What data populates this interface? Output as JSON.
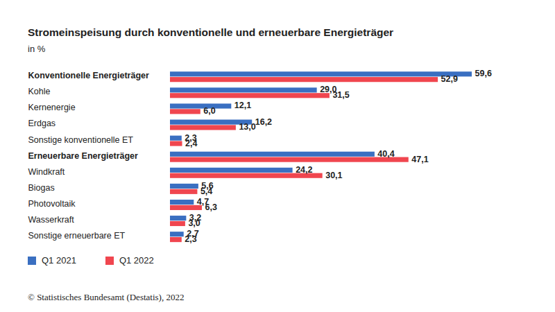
{
  "chart_data": {
    "type": "bar",
    "orientation": "horizontal",
    "title": "Stromeinspeisung durch konventionelle und erneuerbare Energieträger",
    "subtitle": "in %",
    "caption": "© Statistisches Bundesamt (Destatis), 2022",
    "categories": [
      "Konventionelle Energieträger",
      "Kohle",
      "Kernenergie",
      "Erdgas",
      "Sonstige konventionelle ET",
      "Erneuerbare Energieträger",
      "Windkraft",
      "Biogas",
      "Photovoltaik",
      "Wasserkraft",
      "Sonstige erneuerbare ET"
    ],
    "series": [
      {
        "name": "Q1 2021",
        "color": "#3a6fc1",
        "values": [
          59.6,
          29.0,
          12.1,
          16.2,
          2.3,
          40.4,
          24.2,
          5.6,
          4.7,
          3.2,
          2.7
        ],
        "value_labels": [
          "59,6",
          "29,0",
          "12,1",
          "16,2",
          "2,3",
          "40,4",
          "24,2",
          "5,6",
          "4,7",
          "3,2",
          "2,7"
        ]
      },
      {
        "name": "Q1 2022",
        "color": "#f0464f",
        "values": [
          52.9,
          31.5,
          6.0,
          13.0,
          2.4,
          47.1,
          30.1,
          5.4,
          6.3,
          3.0,
          2.3
        ],
        "value_labels": [
          "52,9",
          "31,5",
          "6,0",
          "13,0",
          "2,4",
          "47,1",
          "30,1",
          "5,4",
          "6,3",
          "3,0",
          "2,3"
        ]
      }
    ],
    "data_labels": true,
    "tick_labels": "y",
    "legend": "bottom-left",
    "grid": false
  }
}
